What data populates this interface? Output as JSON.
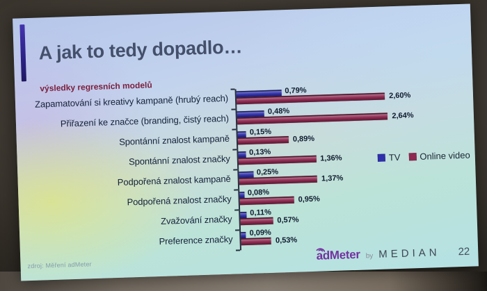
{
  "slide": {
    "title": "A jak to tedy dopadlo…",
    "subtitle": "výsledky regresních modelů",
    "source_note": "zdroj: Měření adMeter",
    "page_number": "22",
    "logo": {
      "brand": "adMeter",
      "by_text": "by",
      "company": "MEDIAN"
    }
  },
  "chart_data": {
    "type": "bar",
    "orientation": "horizontal",
    "title": "",
    "xlabel": "",
    "ylabel": "",
    "xlim": [
      0,
      2.8
    ],
    "grid": false,
    "legend_position": "middle-right",
    "value_format": "percent, comma decimal",
    "categories": [
      "Zapamatování si kreativy kampaně (hrubý reach)",
      "Přiřazení ke značce (branding, čistý reach)",
      "Spontánní znalost kampaně",
      "Spontánní znalost značky",
      "Podpořená znalost kampaně",
      "Podpořená znalost značky",
      "Zvažování značky",
      "Preference značky"
    ],
    "series": [
      {
        "name": "TV",
        "color": "#2f30aa",
        "values": [
          0.79,
          0.48,
          0.15,
          0.13,
          0.25,
          0.08,
          0.11,
          0.09
        ],
        "value_labels": [
          "0,79%",
          "0,48%",
          "0,15%",
          "0,13%",
          "0,25%",
          "0,08%",
          "0,11%",
          "0,09%"
        ]
      },
      {
        "name": "Online video",
        "color": "#8e2950",
        "values": [
          2.6,
          2.64,
          0.89,
          1.36,
          1.37,
          0.95,
          0.57,
          0.53
        ],
        "value_labels": [
          "2,60%",
          "2,64%",
          "0,89%",
          "1,36%",
          "1,37%",
          "0,95%",
          "0,57%",
          "0,53%"
        ]
      }
    ]
  },
  "colors": {
    "title": "#44506b",
    "subtitle": "#7a1f3d",
    "axis": "#26303f",
    "category_label": "#15223a",
    "value_label": "#0e1a2e",
    "tv_bar": "#2f30aa",
    "online_video_bar": "#8e2950",
    "accent_bar": "#2c2184",
    "logo_brand": "#7331a0",
    "logo_company": "#3d4856"
  }
}
